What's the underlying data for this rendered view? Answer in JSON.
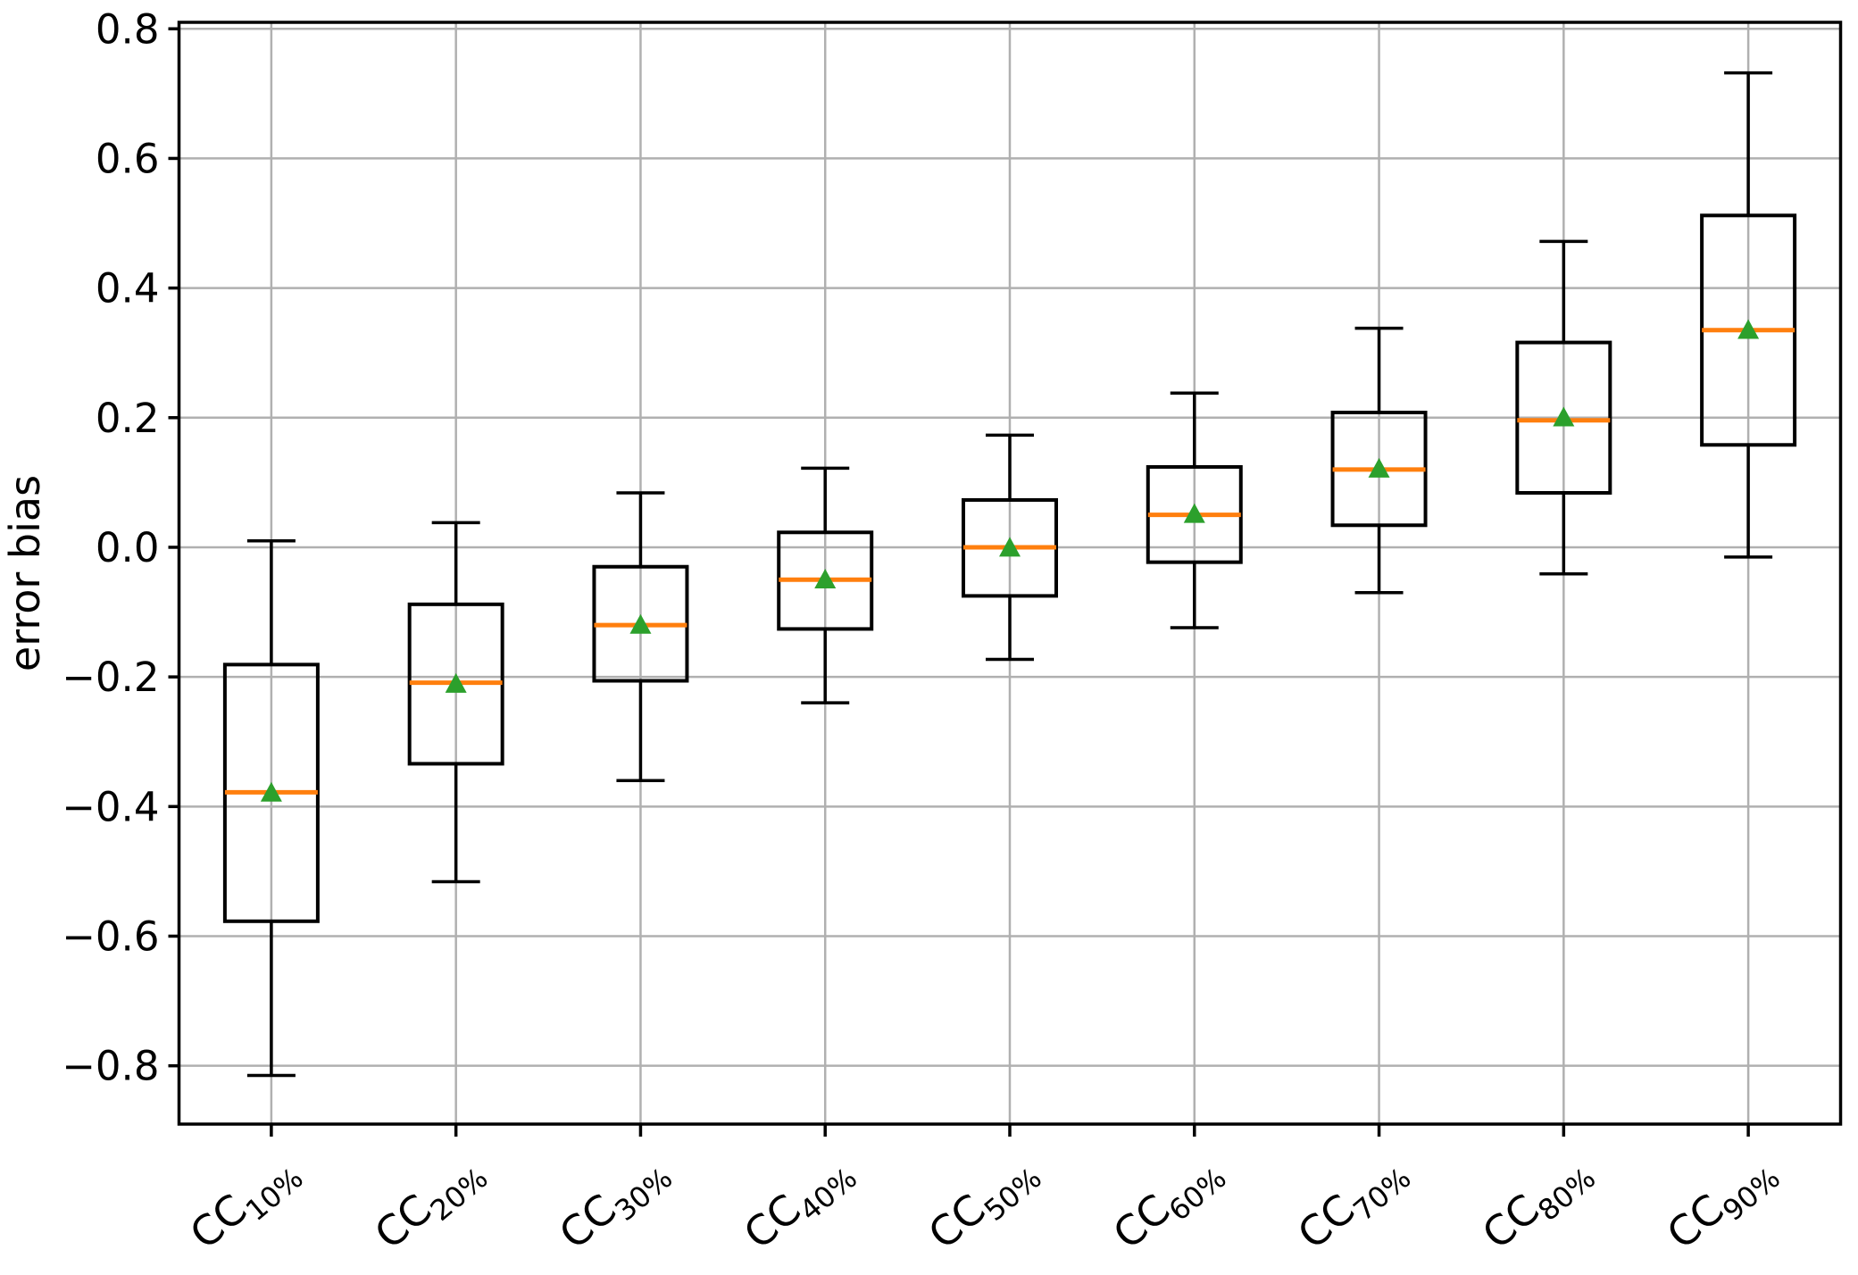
{
  "figure": {
    "background": "#ffffff"
  },
  "chart_data": {
    "type": "boxplot",
    "title": "",
    "xlabel": "",
    "ylabel": "error bias",
    "ylim": [
      -0.89,
      0.81
    ],
    "grid": true,
    "grid_color": "#b0b0b0",
    "colors": {
      "box_line": "#000000",
      "whisker_line": "#000000",
      "median_line": "#ff7f0e",
      "mean_marker": "#2ca02c",
      "spine": "#000000",
      "tick_label": "#000000"
    },
    "ytick_values": [
      0.8,
      0.6,
      0.4,
      0.2,
      0.0,
      -0.2,
      -0.4,
      -0.6,
      -0.8
    ],
    "ytick_labels": [
      "0.8",
      "0.6",
      "0.4",
      "0.2",
      "0.0",
      "−0.2",
      "−0.4",
      "−0.6",
      "−0.8"
    ],
    "categories": [
      "CC10%",
      "CC20%",
      "CC30%",
      "CC40%",
      "CC50%",
      "CC60%",
      "CC70%",
      "CC80%",
      "CC90%"
    ],
    "boxes": [
      {
        "label": "CC",
        "sub": "10%",
        "whislo": -0.815,
        "q1": -0.577,
        "median": -0.378,
        "mean": -0.38,
        "q3": -0.181,
        "whishi": 0.01
      },
      {
        "label": "CC",
        "sub": "20%",
        "whislo": -0.516,
        "q1": -0.334,
        "median": -0.209,
        "mean": -0.212,
        "q3": -0.088,
        "whishi": 0.038
      },
      {
        "label": "CC",
        "sub": "30%",
        "whislo": -0.36,
        "q1": -0.206,
        "median": -0.12,
        "mean": -0.121,
        "q3": -0.03,
        "whishi": 0.084
      },
      {
        "label": "CC",
        "sub": "40%",
        "whislo": -0.24,
        "q1": -0.126,
        "median": -0.05,
        "mean": -0.051,
        "q3": 0.023,
        "whishi": 0.122
      },
      {
        "label": "CC",
        "sub": "50%",
        "whislo": -0.173,
        "q1": -0.075,
        "median": 0.0,
        "mean": -0.002,
        "q3": 0.073,
        "whishi": 0.173
      },
      {
        "label": "CC",
        "sub": "60%",
        "whislo": -0.124,
        "q1": -0.023,
        "median": 0.05,
        "mean": 0.05,
        "q3": 0.124,
        "whishi": 0.238
      },
      {
        "label": "CC",
        "sub": "70%",
        "whislo": -0.07,
        "q1": 0.034,
        "median": 0.12,
        "mean": 0.12,
        "q3": 0.208,
        "whishi": 0.338
      },
      {
        "label": "CC",
        "sub": "80%",
        "whislo": -0.041,
        "q1": 0.084,
        "median": 0.196,
        "mean": 0.199,
        "q3": 0.316,
        "whishi": 0.472
      },
      {
        "label": "CC",
        "sub": "90%",
        "whislo": -0.015,
        "q1": 0.158,
        "median": 0.335,
        "mean": 0.334,
        "q3": 0.512,
        "whishi": 0.732
      }
    ]
  }
}
